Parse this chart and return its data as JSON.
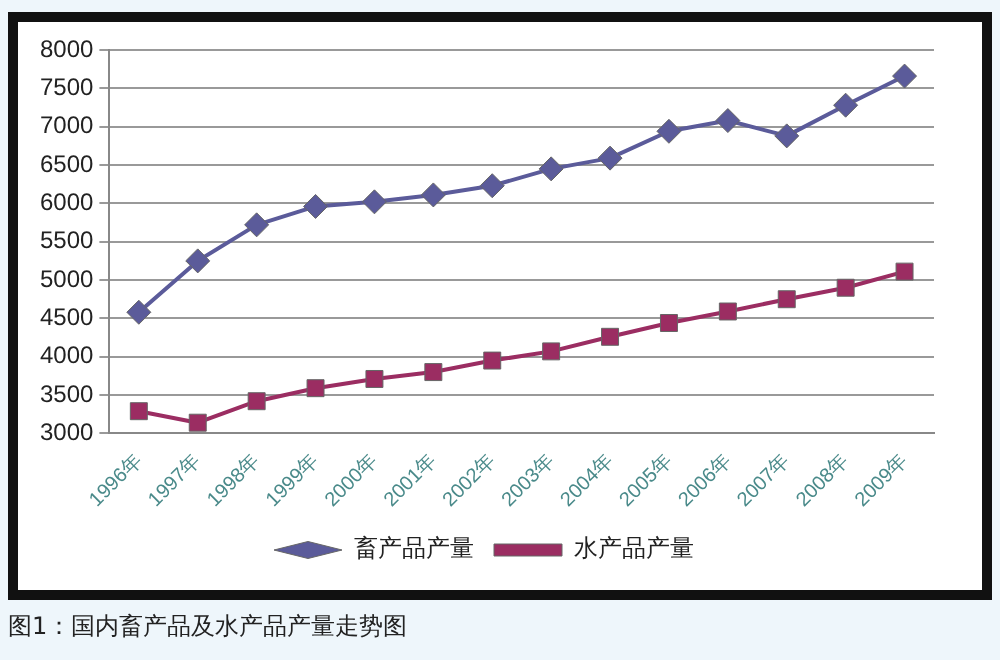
{
  "chart_data": {
    "type": "line",
    "categories": [
      "1996年",
      "1997年",
      "1998年",
      "1999年",
      "2000年",
      "2001年",
      "2002年",
      "2003年",
      "2004年",
      "2005年",
      "2006年",
      "2007年",
      "2008年",
      "2009年"
    ],
    "series": [
      {
        "name": "畜产品产量",
        "color": "#5b5b9a",
        "marker": "diamond",
        "values": [
          4580,
          5250,
          5720,
          5960,
          6020,
          6110,
          6230,
          6450,
          6590,
          6940,
          7080,
          6880,
          7280,
          7660
        ]
      },
      {
        "name": "水产品产量",
        "color": "#9b2d62",
        "marker": "square",
        "values": [
          3290,
          3140,
          3420,
          3590,
          3710,
          3800,
          3950,
          4070,
          4260,
          4440,
          4590,
          4750,
          4900,
          5110
        ]
      }
    ],
    "ylim": [
      3000,
      8000
    ],
    "yticks": [
      3000,
      3500,
      4000,
      4500,
      5000,
      5500,
      6000,
      6500,
      7000,
      7500,
      8000
    ],
    "grid": "y",
    "legend": "bottom",
    "line_style": "solid",
    "annotations": [
      "图1：国内畜产品及水产品产量走势图"
    ]
  }
}
